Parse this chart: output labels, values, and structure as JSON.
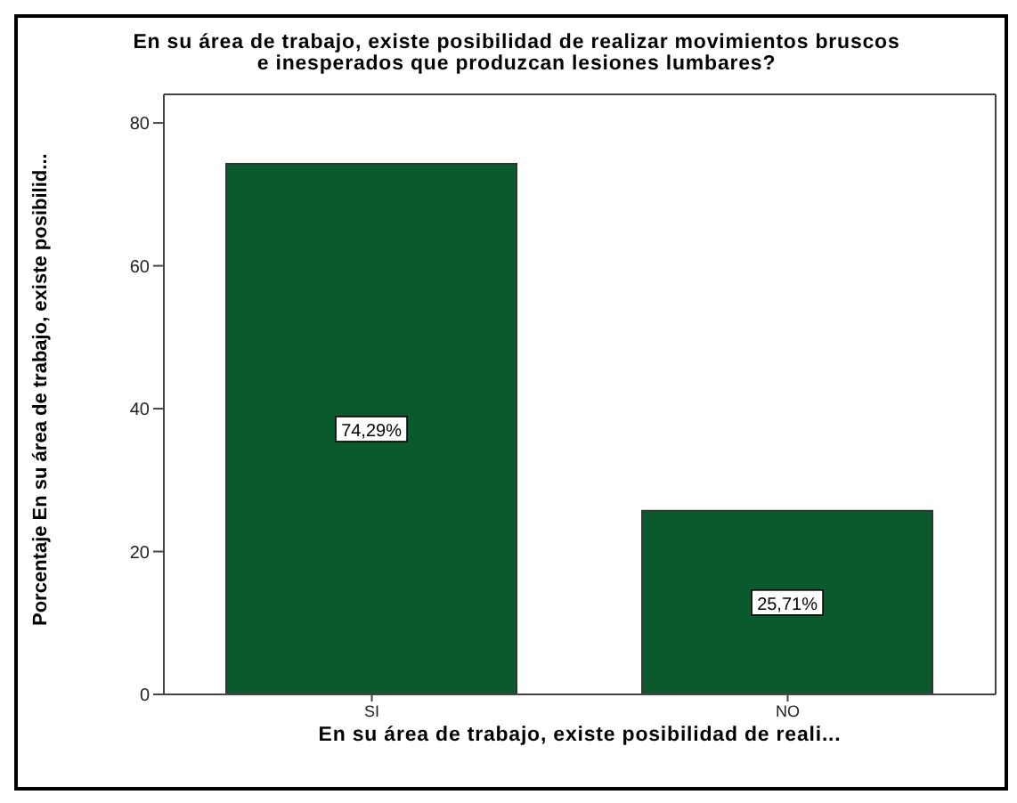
{
  "chart_data": {
    "type": "bar",
    "title": "En su área de trabajo, existe posibilidad de realizar movimientos bruscos e inesperados que produzcan lesiones lumbares?",
    "xlabel": "En su área de trabajo, existe posibilidad de reali...",
    "ylabel": "Porcentaje En su área de trabajo, existe posibilid...",
    "categories": [
      "SI",
      "NO"
    ],
    "values": [
      74.29,
      25.71
    ],
    "value_labels": [
      "74,29%",
      "25,71%"
    ],
    "color": "#0b5a2e",
    "ylim": [
      0,
      84
    ],
    "yticks": [
      0,
      20,
      40,
      60,
      80
    ],
    "grid": false,
    "legend": false
  }
}
